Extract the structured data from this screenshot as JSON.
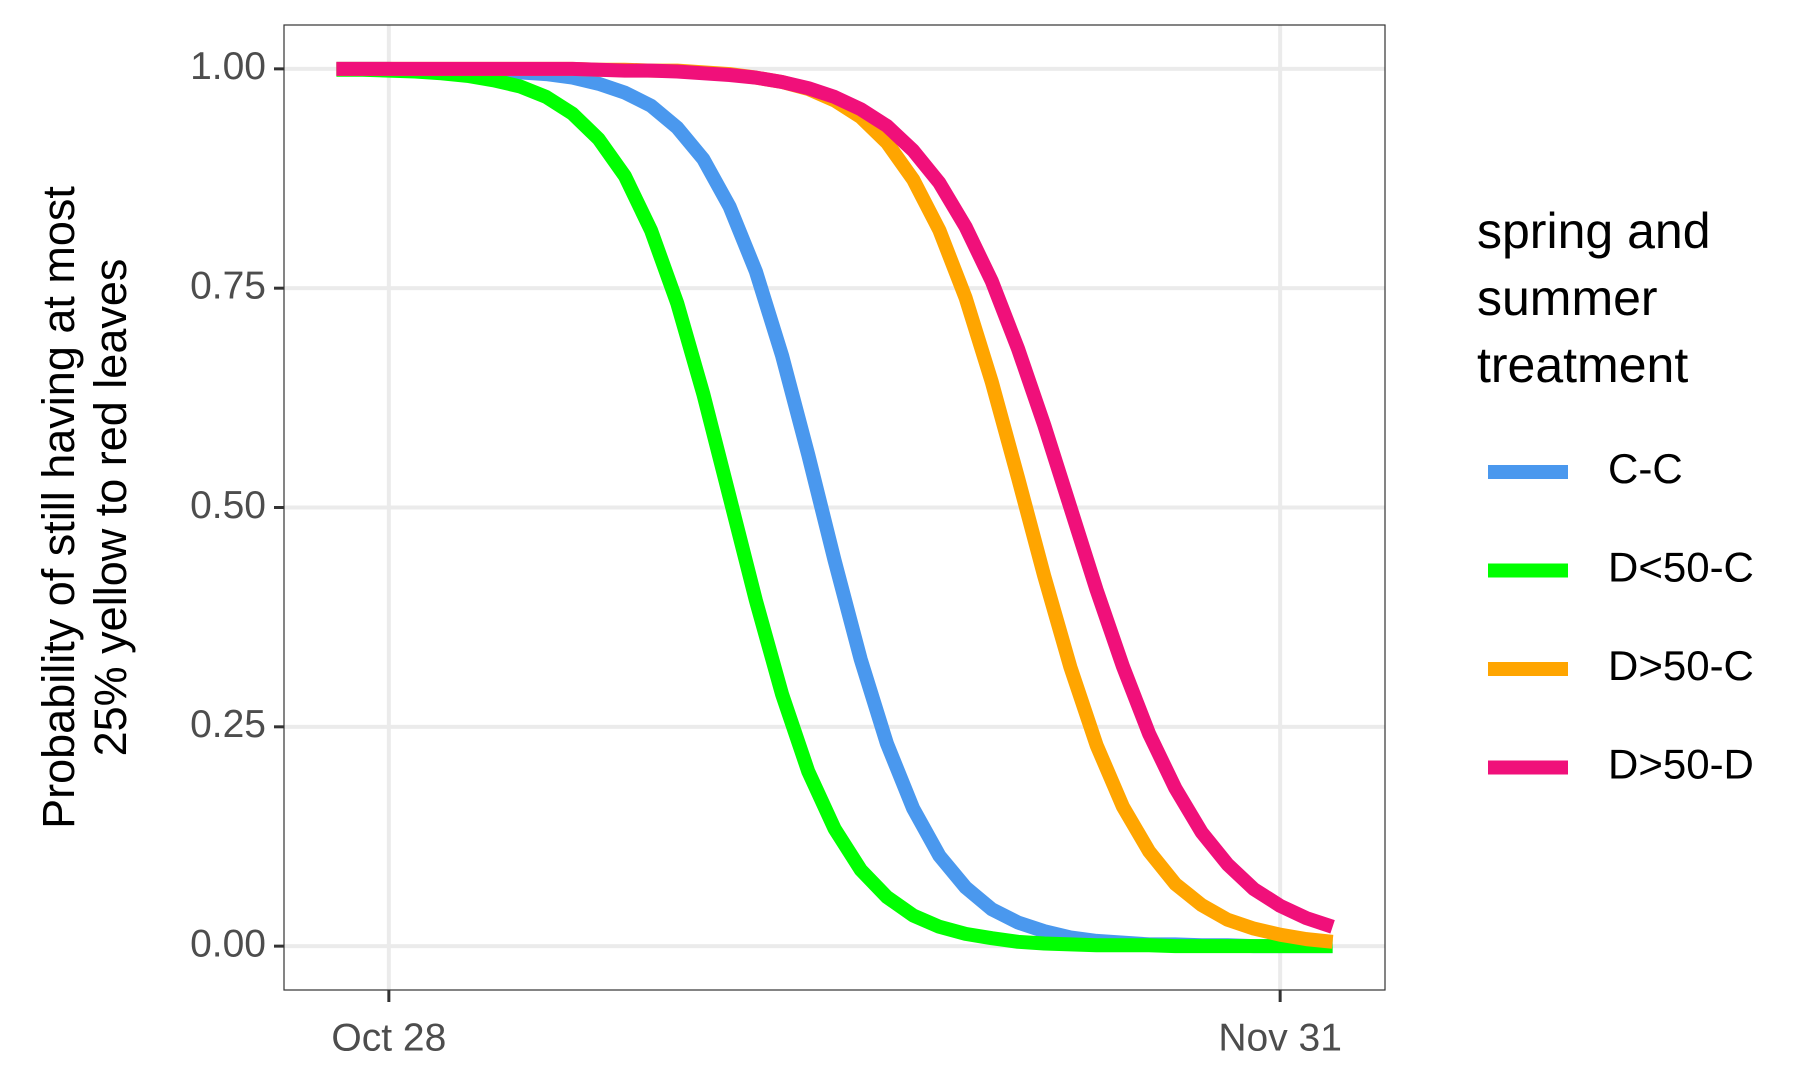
{
  "chart_data": {
    "type": "line",
    "ylabel": [
      "Probability of still having at most",
      "25% yellow to red leaves"
    ],
    "legend_title": [
      "spring and",
      "summer",
      "treatment"
    ],
    "legend_position": "right",
    "grid": true,
    "x": [
      299,
      300,
      301,
      302,
      303,
      304,
      305,
      306,
      307,
      308,
      309,
      310,
      311,
      312,
      313,
      314,
      315,
      316,
      317,
      318,
      319,
      320,
      321,
      322,
      323,
      324,
      325,
      326,
      327,
      328,
      329,
      330,
      331,
      332,
      333,
      334,
      335,
      336,
      337
    ],
    "xlim": [
      297,
      339
    ],
    "xticks": [
      {
        "value": 301,
        "label": "Oct 28"
      },
      {
        "value": 335,
        "label": "Nov 31"
      }
    ],
    "ylim": [
      -0.05,
      1.05
    ],
    "yticks": [
      {
        "value": 0,
        "label": "0.00"
      },
      {
        "value": 0.25,
        "label": "0.25"
      },
      {
        "value": 0.5,
        "label": "0.50"
      },
      {
        "value": 0.75,
        "label": "0.75"
      },
      {
        "value": 1,
        "label": "1.00"
      }
    ],
    "series": [
      {
        "name": "C-C",
        "color": "#4a98ee",
        "values": [
          1.0,
          1.0,
          1.0,
          0.999,
          0.999,
          0.998,
          0.998,
          0.996,
          0.994,
          0.99,
          0.983,
          0.973,
          0.958,
          0.933,
          0.897,
          0.843,
          0.769,
          0.673,
          0.56,
          0.44,
          0.327,
          0.231,
          0.157,
          0.103,
          0.067,
          0.042,
          0.027,
          0.017,
          0.01,
          0.006,
          0.004,
          0.002,
          0.002,
          0.001,
          0.001,
          0.0,
          0.0,
          0.0,
          0.0
        ]
      },
      {
        "name": "D<50-C",
        "color": "#00ff00",
        "values": [
          0.999,
          0.999,
          0.998,
          0.997,
          0.995,
          0.992,
          0.987,
          0.98,
          0.968,
          0.949,
          0.92,
          0.878,
          0.816,
          0.733,
          0.629,
          0.512,
          0.394,
          0.287,
          0.199,
          0.134,
          0.087,
          0.056,
          0.035,
          0.022,
          0.014,
          0.009,
          0.005,
          0.003,
          0.002,
          0.001,
          0.001,
          0.001,
          0.0,
          0.0,
          0.0,
          0.0,
          0.0,
          0.0,
          0.0
        ]
      },
      {
        "name": "D>50-C",
        "color": "#ffa500",
        "values": [
          1.0,
          1.0,
          1.0,
          1.0,
          1.0,
          1.0,
          1.0,
          1.0,
          1.0,
          1.0,
          0.999,
          0.999,
          0.998,
          0.998,
          0.996,
          0.994,
          0.99,
          0.985,
          0.977,
          0.964,
          0.945,
          0.916,
          0.874,
          0.816,
          0.739,
          0.643,
          0.534,
          0.422,
          0.318,
          0.229,
          0.159,
          0.108,
          0.071,
          0.047,
          0.03,
          0.02,
          0.013,
          0.008,
          0.005
        ]
      },
      {
        "name": "D>50-D",
        "color": "#f0107a",
        "values": [
          1.0,
          1.0,
          1.0,
          1.0,
          1.0,
          1.0,
          1.0,
          1.0,
          1.0,
          1.0,
          0.999,
          0.998,
          0.998,
          0.997,
          0.995,
          0.993,
          0.99,
          0.985,
          0.978,
          0.968,
          0.954,
          0.935,
          0.907,
          0.87,
          0.82,
          0.758,
          0.681,
          0.594,
          0.5,
          0.406,
          0.319,
          0.242,
          0.18,
          0.13,
          0.093,
          0.065,
          0.046,
          0.032,
          0.022
        ]
      }
    ]
  }
}
